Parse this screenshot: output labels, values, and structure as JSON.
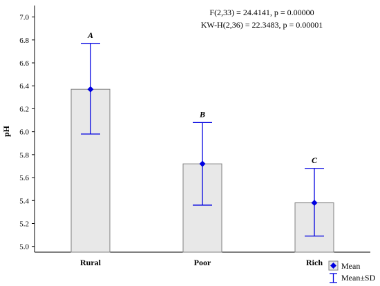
{
  "chart_data": {
    "type": "bar",
    "title": "",
    "xlabel": "",
    "ylabel": "pH",
    "categories": [
      "Rural",
      "Poor",
      "Rich"
    ],
    "values": [
      6.37,
      5.72,
      5.38
    ],
    "sd_low": [
      5.98,
      5.36,
      5.09
    ],
    "sd_high": [
      6.77,
      6.08,
      5.68
    ],
    "group_letters": [
      "A",
      "B",
      "C"
    ],
    "ylim": [
      4.95,
      7.1
    ],
    "yticks": [
      "5.0",
      "5.2",
      "5.4",
      "5.6",
      "5.8",
      "6.0",
      "6.2",
      "6.4",
      "6.6",
      "6.8",
      "7.0"
    ],
    "grid": false,
    "annotations": [
      "F(2,33) = 24.4141, p = 0.00000",
      "KW-H(2,36) = 22.3483, p = 0.00001"
    ],
    "legend": {
      "placement": "bottom-right",
      "entries": [
        "Mean",
        "Mean±SD"
      ]
    },
    "colors": {
      "bar_fill": "#e8e8e8",
      "bar_stroke": "#808080",
      "marker": "#0000e0",
      "axis": "#000000"
    }
  }
}
